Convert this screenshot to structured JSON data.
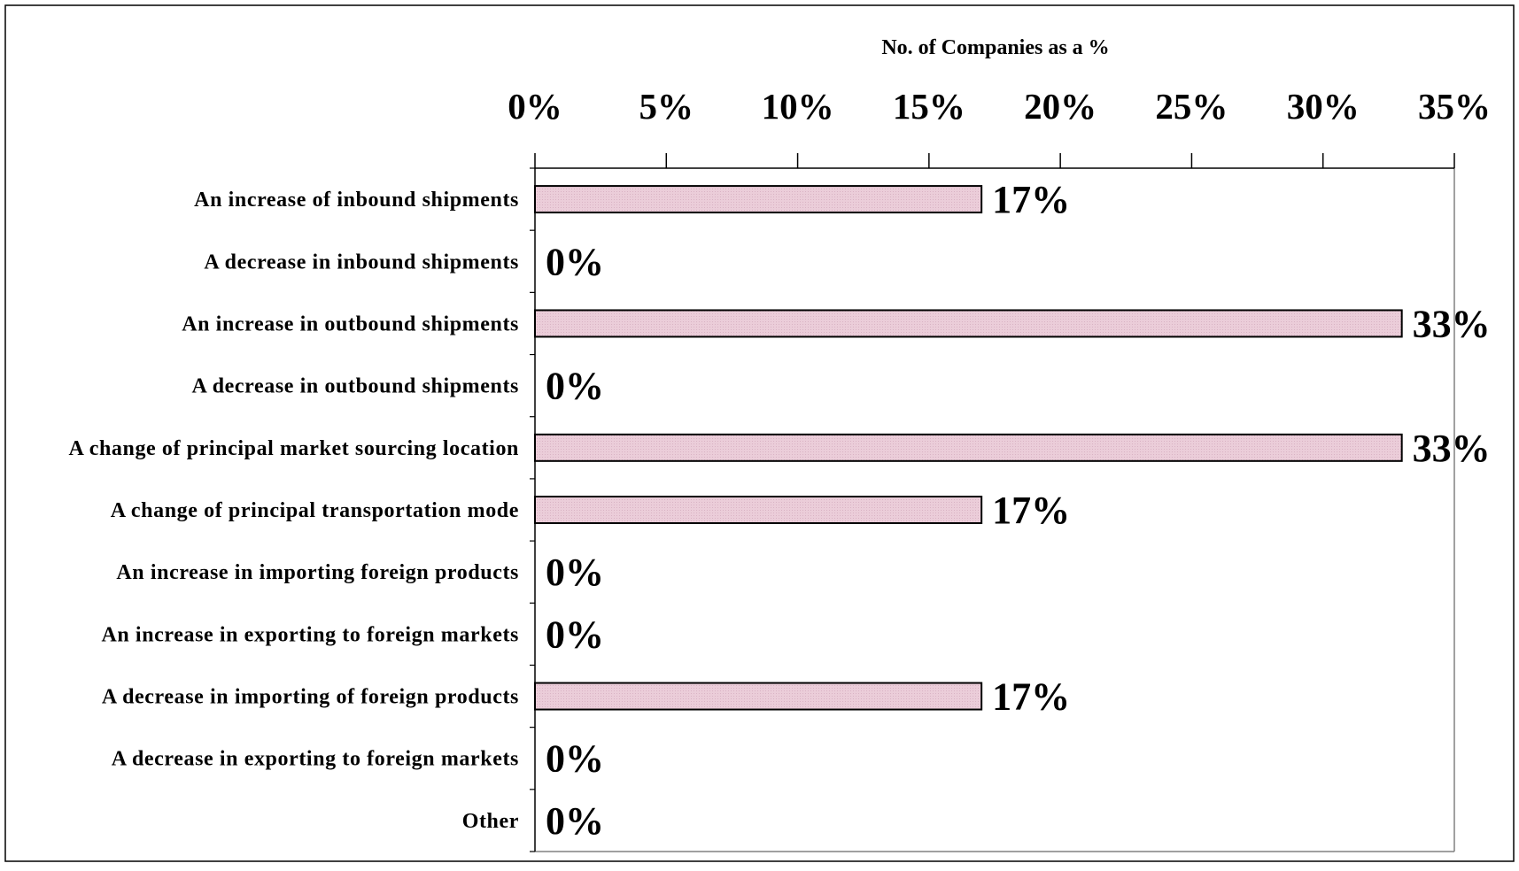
{
  "chart_data": {
    "type": "bar",
    "orientation": "horizontal",
    "title": "",
    "xlabel": "No. of Companies as a %",
    "ylabel": "",
    "xlim": [
      0,
      35
    ],
    "x_ticks": [
      "0%",
      "5%",
      "10%",
      "15%",
      "20%",
      "25%",
      "30%",
      "35%"
    ],
    "x_axis_position": "top",
    "grid": false,
    "legend": "none",
    "categories": [
      "An increase of inbound shipments",
      "A decrease in inbound shipments",
      "An increase in outbound shipments",
      "A decrease in outbound shipments",
      "A change of principal market sourcing location",
      "A change of principal transportation mode",
      "An increase in importing foreign products",
      "An increase in exporting to foreign markets",
      "A decrease in importing of foreign products",
      "A decrease in exporting to foreign markets",
      "Other"
    ],
    "values": [
      17,
      0,
      33,
      0,
      33,
      17,
      0,
      0,
      17,
      0,
      0
    ],
    "value_labels": [
      "17%",
      "0%",
      "33%",
      "0%",
      "33%",
      "17%",
      "0%",
      "0%",
      "17%",
      "0%",
      "0%"
    ],
    "colors": {
      "bar_fill": "#ebcdd9",
      "bar_stroke": "#000000",
      "plot_border": "#808080"
    }
  }
}
